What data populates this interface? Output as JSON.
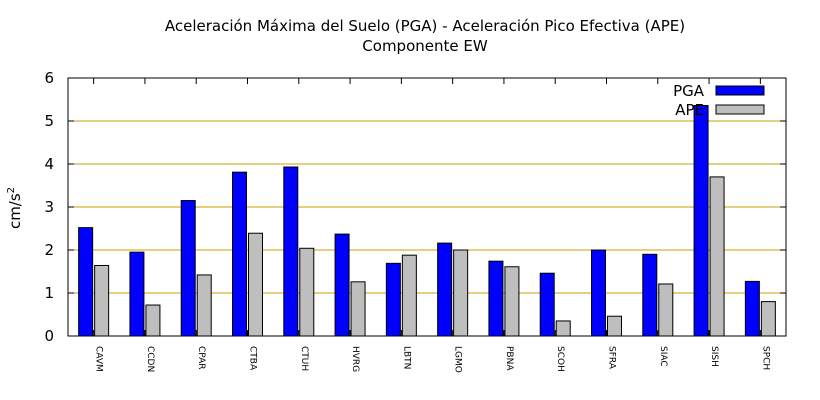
{
  "chart_data": {
    "type": "bar",
    "title": "Aceleración Máxima del Suelo (PGA) -  Aceleración Pico Efectiva (APE)",
    "subtitle": "Componente EW",
    "ylabel": "cm/s",
    "ylabel_sup": "2",
    "ylim": [
      0,
      6
    ],
    "yticks": [
      "0",
      "1",
      "2",
      "3",
      "4",
      "5",
      "6"
    ],
    "grid": "horizontal",
    "legend_position": "top-right",
    "categories": [
      "CAVM",
      "CCDN",
      "CPAR",
      "CTBA",
      "CTUH",
      "HVRG",
      "LBTN",
      "LGMO",
      "PBNA",
      "SCOH",
      "SFRA",
      "SIAC",
      "SISH",
      "SPCH"
    ],
    "series": [
      {
        "name": "PGA",
        "color": "#0000ff",
        "values": [
          2.52,
          1.95,
          3.15,
          3.81,
          3.93,
          2.37,
          1.69,
          2.16,
          1.74,
          1.46,
          2.0,
          1.9,
          5.36,
          1.27
        ]
      },
      {
        "name": "APE",
        "color": "#bebebe",
        "values": [
          1.64,
          0.72,
          1.42,
          2.39,
          2.04,
          1.26,
          1.88,
          2.0,
          1.61,
          0.35,
          0.46,
          1.21,
          3.7,
          0.8
        ]
      }
    ],
    "grid_color": "#c8a000"
  }
}
